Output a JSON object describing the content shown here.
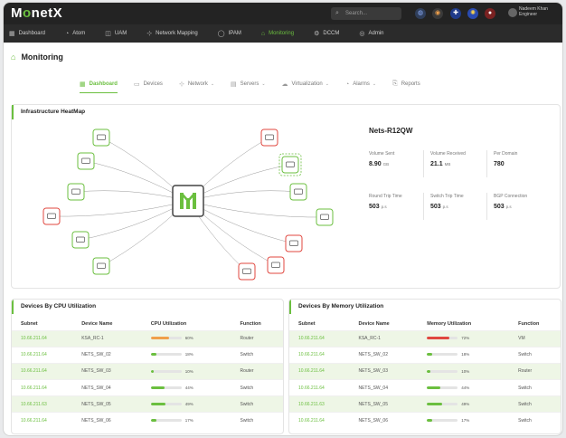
{
  "app": {
    "logo_left": "M",
    "logo_mid": "o",
    "logo_right": "netX"
  },
  "topbar": {
    "search_placeholder": "Search...",
    "user_name": "Nadeem Khan",
    "user_role": "Engineer"
  },
  "nav": [
    {
      "icon": "grid",
      "glyph": "▦",
      "label": "Dashboard"
    },
    {
      "icon": "alarm",
      "glyph": "◔",
      "label": "Atom"
    },
    {
      "icon": "uam",
      "glyph": "◫",
      "label": "UAM"
    },
    {
      "icon": "network",
      "glyph": "⊹",
      "label": "Network Mapping"
    },
    {
      "icon": "ipam",
      "glyph": "◯",
      "label": "IPAM"
    },
    {
      "icon": "monitoring",
      "glyph": "⌂",
      "label": "Monitoring",
      "active": true
    },
    {
      "icon": "dcim",
      "glyph": "⚙",
      "label": "DCCM"
    },
    {
      "icon": "admin",
      "glyph": "◎",
      "label": "Admin"
    }
  ],
  "page": {
    "title": "Monitoring"
  },
  "tabs": [
    {
      "label": "Dashboard",
      "glyph": "▦",
      "active": true,
      "dropdown": false
    },
    {
      "label": "Devices",
      "glyph": "▭",
      "dropdown": false
    },
    {
      "label": "Network",
      "glyph": "⊹",
      "dropdown": true
    },
    {
      "label": "Servers",
      "glyph": "▤",
      "dropdown": true
    },
    {
      "label": "Virtualization",
      "glyph": "☁",
      "dropdown": true
    },
    {
      "label": "Alarms",
      "glyph": "◔",
      "dropdown": true
    },
    {
      "label": "Reports",
      "glyph": "⎘",
      "dropdown": false
    }
  ],
  "heatmap": {
    "title": "Infrastructure HeatMap",
    "device_name": "Nets-R12QW",
    "metrics": [
      {
        "label": "Volume Sent",
        "value": "8.90",
        "unit": "GB"
      },
      {
        "label": "Volume Received",
        "value": "21.1",
        "unit": "MB"
      },
      {
        "label": "Per Domain",
        "value": "780",
        "unit": ""
      },
      {
        "label": "Round Trip Time",
        "value": "503",
        "unit": "p.s"
      },
      {
        "label": "Switch Trip Time",
        "value": "503",
        "unit": "p.s"
      },
      {
        "label": "BGP Connection",
        "value": "503",
        "unit": "p.s"
      }
    ],
    "nodes": [
      {
        "status": "ok"
      },
      {
        "status": "critical"
      },
      {
        "status": "ok"
      },
      {
        "status": "ok-dashed"
      },
      {
        "status": "ok"
      },
      {
        "status": "ok"
      },
      {
        "status": "critical"
      },
      {
        "status": "ok"
      },
      {
        "status": "ok"
      },
      {
        "status": "critical"
      },
      {
        "status": "critical"
      },
      {
        "status": "ok"
      },
      {
        "status": "critical"
      }
    ]
  },
  "colors": {
    "ok": "#6bbf3f",
    "critical": "#e0473f",
    "warn": "#f0a04b",
    "accent": "#6bbf3f"
  },
  "cpu": {
    "title": "Devices By CPU Utilization",
    "columns": [
      "Subnet",
      "Device Name",
      "CPU Utilization",
      "Function"
    ],
    "rows": [
      {
        "subnet": "10.66.211.64",
        "device": "KSA_RC-1",
        "pct": 0.6,
        "pct_label": "60%",
        "func": "Router",
        "color": "warn"
      },
      {
        "subnet": "10.66.211.64",
        "device": "NETS_SW_02",
        "pct": 0.18,
        "pct_label": "18%",
        "func": "Switch",
        "color": "ok"
      },
      {
        "subnet": "10.66.211.64",
        "device": "NETS_SW_03",
        "pct": 0.1,
        "pct_label": "10%",
        "func": "Router",
        "color": "ok"
      },
      {
        "subnet": "10.66.211.64",
        "device": "NETS_SW_04",
        "pct": 0.44,
        "pct_label": "44%",
        "func": "Switch",
        "color": "ok"
      },
      {
        "subnet": "10.66.211.63",
        "device": "NETS_SW_05",
        "pct": 0.49,
        "pct_label": "49%",
        "func": "Switch",
        "color": "ok"
      },
      {
        "subnet": "10.66.211.64",
        "device": "NETS_SW_06",
        "pct": 0.17,
        "pct_label": "17%",
        "func": "Switch",
        "color": "ok"
      }
    ]
  },
  "memory": {
    "title": "Devices By Memory Utilization",
    "columns": [
      "Subnet",
      "Device Name",
      "Memory Utilization",
      "Function"
    ],
    "rows": [
      {
        "subnet": "10.66.211.64",
        "device": "KSA_RC-1",
        "pct": 0.72,
        "pct_label": "72%",
        "func": "VM",
        "color": "critical"
      },
      {
        "subnet": "10.66.211.64",
        "device": "NETS_SW_02",
        "pct": 0.18,
        "pct_label": "18%",
        "func": "Switch",
        "color": "ok"
      },
      {
        "subnet": "10.66.211.64",
        "device": "NETS_SW_03",
        "pct": 0.1,
        "pct_label": "10%",
        "func": "Router",
        "color": "ok"
      },
      {
        "subnet": "10.66.211.64",
        "device": "NETS_SW_04",
        "pct": 0.44,
        "pct_label": "44%",
        "func": "Switch",
        "color": "ok"
      },
      {
        "subnet": "10.66.211.63",
        "device": "NETS_SW_05",
        "pct": 0.49,
        "pct_label": "49%",
        "func": "Switch",
        "color": "ok"
      },
      {
        "subnet": "10.66.211.64",
        "device": "NETS_SW_06",
        "pct": 0.17,
        "pct_label": "17%",
        "func": "Switch",
        "color": "ok"
      }
    ]
  }
}
